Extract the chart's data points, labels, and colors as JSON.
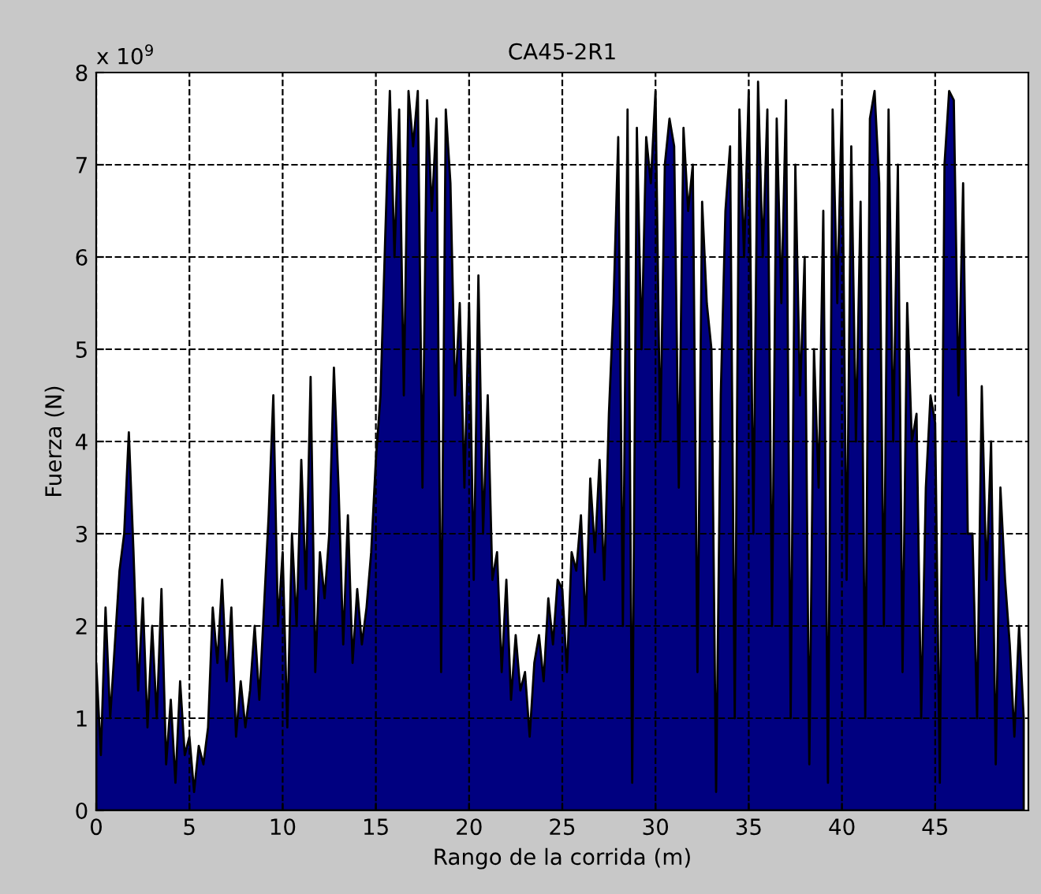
{
  "chart_data": {
    "type": "area",
    "title": "CA45-2R1",
    "xlabel": "Rango de la corrida (m)",
    "ylabel": "Fuerza (N)",
    "annotations": [
      "x 10$^{9}$"
    ],
    "xlim": [
      0,
      50
    ],
    "xticks": [
      0,
      5,
      10,
      15,
      20,
      25,
      30,
      35,
      40,
      45
    ],
    "ylim": [
      0,
      8
    ],
    "yticks": [
      0,
      1,
      2,
      3,
      4,
      5,
      6,
      7,
      8
    ],
    "grid": true,
    "line_style": "dashed",
    "series": [
      {
        "color": "#000080",
        "x": [
          0,
          0.25,
          0.5,
          0.75,
          1,
          1.25,
          1.5,
          1.75,
          2,
          2.25,
          2.5,
          2.75,
          3,
          3.25,
          3.5,
          3.75,
          4,
          4.25,
          4.5,
          4.75,
          5,
          5.25,
          5.5,
          5.75,
          6,
          6.25,
          6.5,
          6.75,
          7,
          7.25,
          7.5,
          7.75,
          8,
          8.25,
          8.5,
          8.75,
          9,
          9.25,
          9.5,
          9.75,
          10,
          10.25,
          10.5,
          10.75,
          11,
          11.25,
          11.5,
          11.75,
          12,
          12.25,
          12.5,
          12.75,
          13,
          13.25,
          13.5,
          13.75,
          14,
          14.25,
          14.5,
          14.75,
          15,
          15.25,
          15.5,
          15.75,
          16,
          16.25,
          16.5,
          16.75,
          17,
          17.25,
          17.5,
          17.75,
          18,
          18.25,
          18.5,
          18.75,
          19,
          19.25,
          19.5,
          19.75,
          20,
          20.25,
          20.5,
          20.75,
          21,
          21.25,
          21.5,
          21.75,
          22,
          22.25,
          22.5,
          22.75,
          23,
          23.25,
          23.5,
          23.75,
          24,
          24.25,
          24.5,
          24.75,
          25,
          25.25,
          25.5,
          25.75,
          26,
          26.25,
          26.5,
          26.75,
          27,
          27.25,
          27.5,
          27.75,
          28,
          28.25,
          28.5,
          28.75,
          29,
          29.25,
          29.5,
          29.75,
          30,
          30.25,
          30.5,
          30.75,
          31,
          31.25,
          31.5,
          31.75,
          32,
          32.25,
          32.5,
          32.75,
          33,
          33.25,
          33.5,
          33.75,
          34,
          34.25,
          34.5,
          34.75,
          35,
          35.25,
          35.5,
          35.75,
          36,
          36.25,
          36.5,
          36.75,
          37,
          37.25,
          37.5,
          37.75,
          38,
          38.25,
          38.5,
          38.75,
          39,
          39.25,
          39.5,
          39.75,
          40,
          40.25,
          40.5,
          40.75,
          41,
          41.25,
          41.5,
          41.75,
          42,
          42.25,
          42.5,
          42.75,
          43,
          43.25,
          43.5,
          43.75,
          44,
          44.25,
          44.5,
          44.75,
          45,
          45.25,
          45.5,
          45.75,
          46,
          46.25,
          46.5,
          46.75,
          47,
          47.25,
          47.5,
          47.75,
          48,
          48.25,
          48.5,
          48.75,
          49,
          49.25,
          49.5,
          49.75
        ],
        "values": [
          1.6,
          0.6,
          2.2,
          1.0,
          1.8,
          2.6,
          3.0,
          4.1,
          2.8,
          1.3,
          2.3,
          0.9,
          2.0,
          1.0,
          2.4,
          0.5,
          1.2,
          0.3,
          1.4,
          0.6,
          0.8,
          0.2,
          0.7,
          0.5,
          0.9,
          2.2,
          1.6,
          2.5,
          1.4,
          2.2,
          0.8,
          1.4,
          0.9,
          1.3,
          2.0,
          1.2,
          2.2,
          3.2,
          4.5,
          2.0,
          2.8,
          0.9,
          3.0,
          2.0,
          3.8,
          2.4,
          4.7,
          1.5,
          2.8,
          2.3,
          3.0,
          4.8,
          3.5,
          1.8,
          3.2,
          1.6,
          2.4,
          1.8,
          2.2,
          2.8,
          3.8,
          4.5,
          6.2,
          7.8,
          6.0,
          7.6,
          4.5,
          7.8,
          7.2,
          7.8,
          3.5,
          7.7,
          6.5,
          7.5,
          1.5,
          7.6,
          6.8,
          4.5,
          5.5,
          3.5,
          5.5,
          2.5,
          5.8,
          3.0,
          4.5,
          2.5,
          2.8,
          1.5,
          2.5,
          1.2,
          1.9,
          1.3,
          1.5,
          0.8,
          1.6,
          1.9,
          1.4,
          2.3,
          1.8,
          2.5,
          2.4,
          1.5,
          2.8,
          2.6,
          3.2,
          2.0,
          3.6,
          2.8,
          3.8,
          2.5,
          4.3,
          5.5,
          7.3,
          2.0,
          7.6,
          0.3,
          7.4,
          5.0,
          7.3,
          6.8,
          7.8,
          4.0,
          7.0,
          7.5,
          7.2,
          3.5,
          7.4,
          6.5,
          7.0,
          1.5,
          6.6,
          5.5,
          5.0,
          0.2,
          4.5,
          6.5,
          7.2,
          1.0,
          7.6,
          6.0,
          7.8,
          3.0,
          7.9,
          6.0,
          7.6,
          2.0,
          7.5,
          5.5,
          7.7,
          1.0,
          7.0,
          4.5,
          6.0,
          0.5,
          5.0,
          3.5,
          6.5,
          0.3,
          7.6,
          5.5,
          7.7,
          2.5,
          7.2,
          4.0,
          6.6,
          1.0,
          7.5,
          7.8,
          6.8,
          2.0,
          7.6,
          4.0,
          7.0,
          1.5,
          5.5,
          4.0,
          4.3,
          1.0,
          3.5,
          4.5,
          4.2,
          0.3,
          7.0,
          7.8,
          7.7,
          4.5,
          6.8,
          3.0,
          3.0,
          1.0,
          4.6,
          2.5,
          4.0,
          0.5,
          3.5,
          2.5,
          1.8,
          0.8,
          2.0,
          1.0
        ]
      }
    ]
  }
}
